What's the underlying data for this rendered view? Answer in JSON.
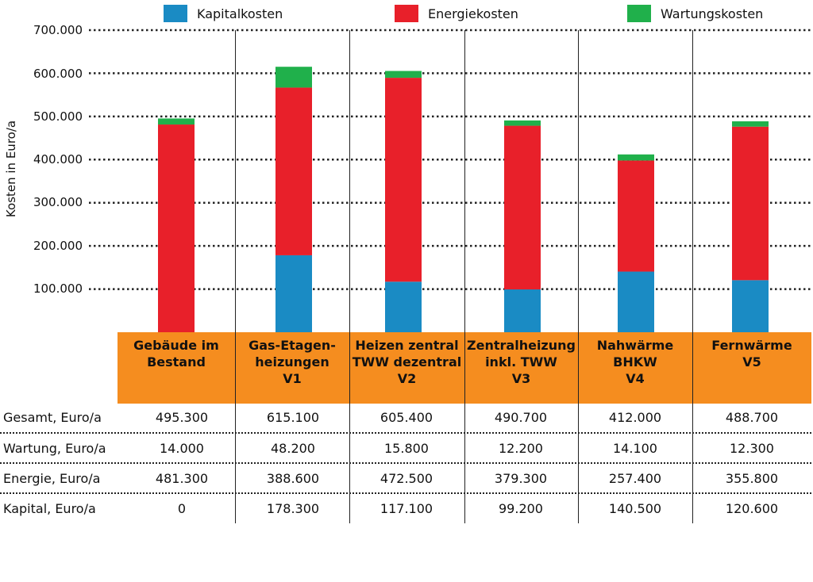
{
  "legend": [
    {
      "name": "Kapitalkosten",
      "color": "#1a8bc4"
    },
    {
      "name": "Energiekosten",
      "color": "#e8202a"
    },
    {
      "name": "Wartungskosten",
      "color": "#20b04b"
    }
  ],
  "chart_data": {
    "type": "bar",
    "stacked": true,
    "ylabel": "Kosten in Euro/a",
    "ylim": [
      0,
      700000
    ],
    "yticks": [
      "100.000",
      "200.000",
      "300.000",
      "400.000",
      "500.000",
      "600.000",
      "700.000"
    ],
    "grid": "horizontal dotted",
    "legend_position": "top",
    "categories": [
      "Gebäude im Bestand",
      "Gas-Etagen-heizungen V1",
      "Heizen zentral TWW dezentral V2",
      "Zentralheizung inkl. TWW V3",
      "Nahwärme BHKW V4",
      "Fernwärme V5"
    ],
    "series": [
      {
        "name": "Kapitalkosten",
        "color": "#1a8bc4",
        "values": [
          0,
          178300,
          117100,
          99200,
          140500,
          120600
        ]
      },
      {
        "name": "Energiekosten",
        "color": "#e8202a",
        "values": [
          481300,
          388600,
          472500,
          379300,
          257400,
          355800
        ]
      },
      {
        "name": "Wartungskosten",
        "color": "#20b04b",
        "values": [
          14000,
          48200,
          15800,
          12200,
          14100,
          12300
        ]
      }
    ]
  },
  "table": {
    "columns": [
      [
        "Gebäude im",
        "Bestand",
        ""
      ],
      [
        "Gas-Etagen-",
        "heizungen",
        "V1"
      ],
      [
        "Heizen zentral",
        "TWW dezentral",
        "V2"
      ],
      [
        "Zentralheizung",
        "inkl. TWW",
        "V3"
      ],
      [
        "Nahwärme",
        "BHKW",
        "V4"
      ],
      [
        "Fernwärme",
        "",
        "V5"
      ]
    ],
    "rows": [
      {
        "label": "Gesamt, Euro/a",
        "values": [
          "495.300",
          "615.100",
          "605.400",
          "490.700",
          "412.000",
          "488.700"
        ]
      },
      {
        "label": "Wartung, Euro/a",
        "values": [
          "14.000",
          "48.200",
          "15.800",
          "12.200",
          "14.100",
          "12.300"
        ]
      },
      {
        "label": "Energie, Euro/a",
        "values": [
          "481.300",
          "388.600",
          "472.500",
          "379.300",
          "257.400",
          "355.800"
        ]
      },
      {
        "label": "Kapital, Euro/a",
        "values": [
          "0",
          "178.300",
          "117.100",
          "99.200",
          "140.500",
          "120.600"
        ]
      }
    ]
  }
}
